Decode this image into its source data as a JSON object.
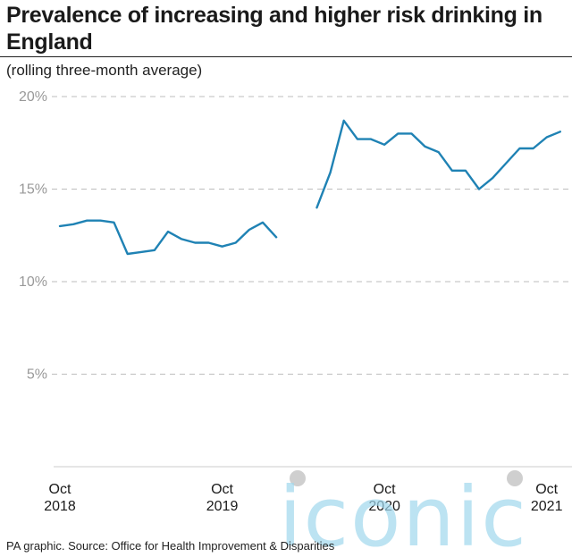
{
  "title": "Prevalence of increasing and higher risk drinking in England",
  "subtitle": "(rolling three-month average)",
  "source": "PA graphic. Source: Office for Health Improvement & Disparities",
  "watermark": "iconic",
  "colors": {
    "line": "#1f82b4",
    "grid": "#bdbdbd",
    "watermark": "#9fd7ec",
    "watermark_dot": "#cfcfcf"
  },
  "chart_data": {
    "type": "line",
    "title": "Prevalence of increasing and higher risk drinking in England",
    "subtitle": "(rolling three-month average)",
    "ylim": [
      0,
      20
    ],
    "y_ticks": [
      5,
      10,
      15,
      20
    ],
    "y_tick_labels": [
      "5%",
      "10%",
      "15%",
      "20%"
    ],
    "grid": true,
    "x_ticks": [
      "Oct 2018",
      "Oct 2019",
      "Oct 2020",
      "Oct 2021"
    ],
    "x_tick_lines": [
      [
        "Oct",
        "2018"
      ],
      [
        "Oct",
        "2019"
      ],
      [
        "Oct",
        "2020"
      ],
      [
        "Oct",
        "2021"
      ]
    ],
    "series": [
      {
        "segments": [
          {
            "x": [
              "2018-10",
              "2018-11",
              "2018-12",
              "2019-01",
              "2019-02",
              "2019-03",
              "2019-04",
              "2019-05",
              "2019-06",
              "2019-07",
              "2019-08",
              "2019-09",
              "2019-10",
              "2019-11",
              "2019-12",
              "2020-01",
              "2020-02",
              "2020-03"
            ],
            "y": [
              13.0,
              13.1,
              13.3,
              13.3,
              13.2,
              11.5,
              11.6,
              11.7,
              12.7,
              12.3,
              12.1,
              12.1,
              11.9,
              12.1,
              12.8,
              13.2,
              12.4,
              null
            ]
          },
          {
            "x": [
              "2020-05",
              "2020-06",
              "2020-07",
              "2020-08",
              "2020-09",
              "2020-10",
              "2020-11",
              "2020-12",
              "2021-01",
              "2021-02",
              "2021-03",
              "2021-04",
              "2021-05",
              "2021-06",
              "2021-07",
              "2021-08",
              "2021-09",
              "2021-10",
              "2021-11"
            ],
            "y": [
              14.0,
              15.9,
              18.7,
              17.7,
              17.7,
              17.4,
              18.0,
              18.0,
              17.3,
              17.0,
              16.0,
              16.0,
              15.0,
              15.6,
              16.4,
              17.2,
              17.2,
              17.8,
              18.1
            ]
          }
        ]
      }
    ]
  }
}
